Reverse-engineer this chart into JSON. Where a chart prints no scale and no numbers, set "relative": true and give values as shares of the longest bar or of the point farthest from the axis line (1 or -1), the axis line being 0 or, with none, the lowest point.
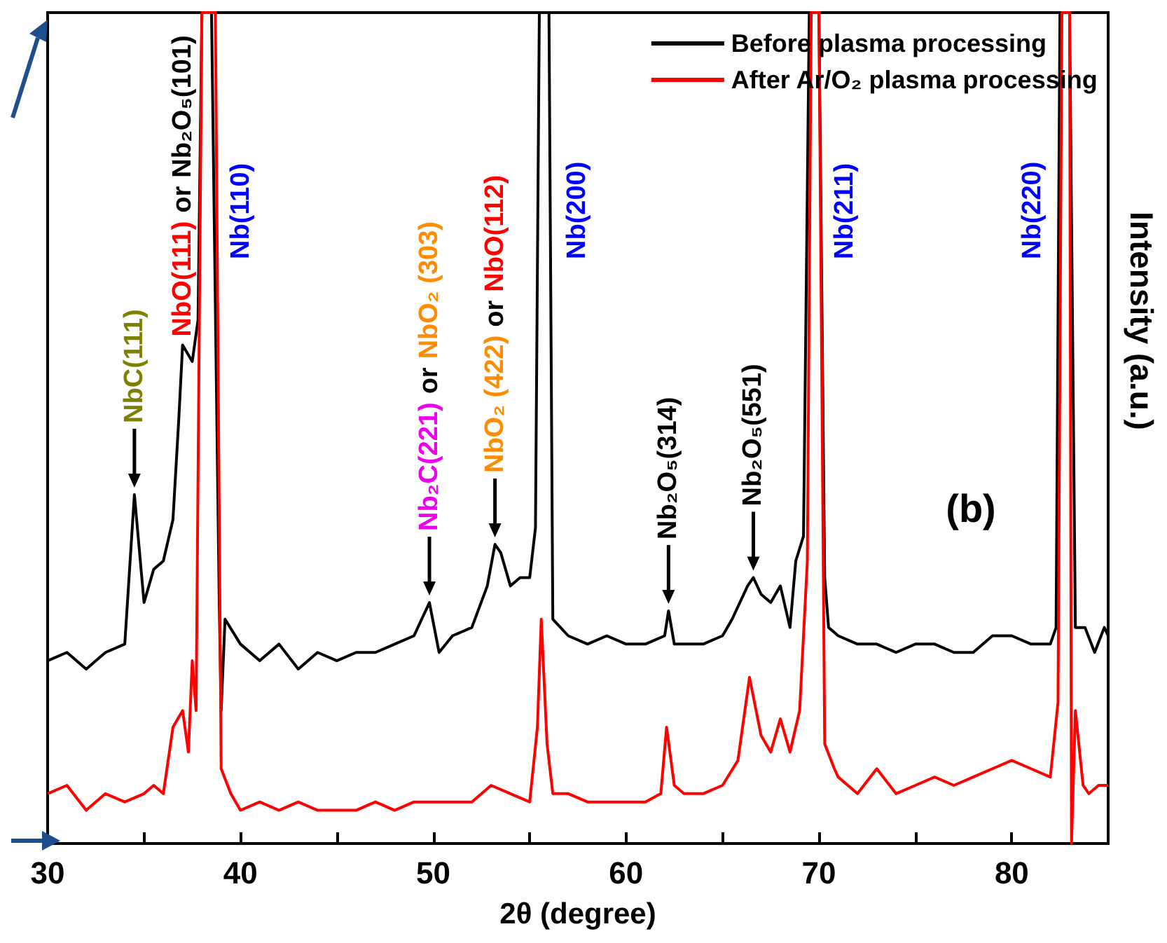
{
  "chart_data": {
    "type": "line",
    "xlabel": "2θ (degree)",
    "ylabel": "Intensity (a.u.)",
    "relative": true,
    "xlim": [
      30,
      85
    ],
    "xticks": [
      30,
      {
        "value": 35,
        "label": null
      },
      40,
      {
        "value": 45,
        "label": null
      },
      50,
      {
        "value": 55,
        "label": null
      },
      60,
      {
        "value": 65,
        "label": null
      },
      70,
      {
        "value": 75,
        "label": null
      },
      80,
      {
        "value": 85,
        "label": null
      }
    ],
    "legend": "top right",
    "marker": "none",
    "line_style": "solid",
    "grid": false,
    "series": [
      {
        "name": "Before plasma processing",
        "color": "#000000",
        "x": [
          30,
          31,
          32,
          33,
          34,
          34.5,
          35,
          35.5,
          36,
          36.5,
          36.8,
          37,
          37.5,
          37.8,
          38,
          38.5,
          38.9,
          39,
          39.2,
          40,
          41,
          42,
          43,
          44,
          45,
          46,
          47,
          48,
          49,
          49.8,
          50.3,
          51,
          52,
          52.8,
          53.2,
          53.5,
          54,
          54.5,
          55,
          55.3,
          55.5,
          56,
          56.2,
          57,
          58,
          59,
          60,
          61,
          62,
          62.2,
          62.5,
          63,
          64,
          65,
          65.5,
          66.3,
          66.6,
          67,
          67.5,
          68,
          68.5,
          68.8,
          69.2,
          69.5,
          70,
          70.3,
          70.5,
          71,
          72,
          73,
          74,
          75,
          76,
          77,
          78,
          79,
          80,
          81,
          82,
          82.3,
          82.5,
          83,
          83.3,
          83.8,
          84.3,
          84.8,
          85
        ],
        "values": [
          0.22,
          0.23,
          0.21,
          0.23,
          0.24,
          0.42,
          0.29,
          0.33,
          0.34,
          0.39,
          0.51,
          0.6,
          0.58,
          0.63,
          1,
          1,
          0.29,
          0.16,
          0.27,
          0.24,
          0.22,
          0.24,
          0.21,
          0.23,
          0.22,
          0.23,
          0.23,
          0.24,
          0.25,
          0.29,
          0.23,
          0.25,
          0.26,
          0.31,
          0.36,
          0.35,
          0.31,
          0.32,
          0.32,
          0.38,
          1,
          1,
          0.27,
          0.25,
          0.24,
          0.25,
          0.24,
          0.24,
          0.25,
          0.28,
          0.24,
          0.24,
          0.24,
          0.25,
          0.27,
          0.31,
          0.32,
          0.3,
          0.29,
          0.31,
          0.26,
          0.34,
          0.37,
          1,
          1,
          0.32,
          0.26,
          0.25,
          0.24,
          0.24,
          0.23,
          0.24,
          0.24,
          0.23,
          0.23,
          0.25,
          0.25,
          0.24,
          0.24,
          0.26,
          1,
          1,
          0.26,
          0.26,
          0.23,
          0.26,
          0.25
        ]
      },
      {
        "name": "After Ar/O₂ plasma processing",
        "color": "#ff0000",
        "x": [
          30,
          31,
          32,
          33,
          34,
          35,
          35.5,
          36,
          36.5,
          37,
          37.3,
          37.5,
          37.7,
          38,
          38.7,
          39,
          39.5,
          40,
          41,
          42,
          43,
          44,
          45,
          46,
          47,
          48,
          49,
          50,
          51,
          52,
          53,
          54,
          55,
          55.4,
          55.6,
          55.9,
          56.2,
          57,
          58,
          59,
          60,
          61,
          61.8,
          62.1,
          62.5,
          63,
          64,
          65,
          65.8,
          66.4,
          67,
          67.5,
          68,
          68.5,
          69,
          69.4,
          69.6,
          70,
          70.3,
          70.8,
          71,
          72,
          73,
          74,
          75,
          76,
          77,
          78,
          79,
          80,
          81,
          82,
          82.4,
          82.6,
          83,
          83.1,
          83.3,
          83.7,
          84,
          84.5,
          85
        ],
        "values": [
          0.06,
          0.07,
          0.04,
          0.06,
          0.05,
          0.06,
          0.07,
          0.06,
          0.14,
          0.16,
          0.11,
          0.22,
          0.16,
          1,
          1,
          0.09,
          0.06,
          0.04,
          0.05,
          0.04,
          0.05,
          0.04,
          0.04,
          0.04,
          0.05,
          0.04,
          0.05,
          0.05,
          0.05,
          0.05,
          0.07,
          0.06,
          0.05,
          0.14,
          0.27,
          0.12,
          0.06,
          0.06,
          0.05,
          0.05,
          0.05,
          0.05,
          0.06,
          0.14,
          0.07,
          0.06,
          0.06,
          0.07,
          0.1,
          0.2,
          0.13,
          0.11,
          0.15,
          0.11,
          0.16,
          0.34,
          1,
          1,
          0.12,
          0.09,
          0.08,
          0.06,
          0.09,
          0.06,
          0.07,
          0.08,
          0.07,
          0.08,
          0.09,
          0.1,
          0.09,
          0.08,
          0.17,
          1,
          1,
          0,
          0.16,
          0.07,
          0.06,
          0.07,
          0.07
        ]
      }
    ],
    "annotations": [
      {
        "text": "NbC(111)",
        "x": 34.5,
        "y": 0.42
      },
      {
        "text": "NbO(111)",
        "x": 37,
        "y": 0.6
      },
      "or",
      "Nb₂O₅(101)",
      "Nb(110)",
      {
        "text": "Nb₂C(221)",
        "x": 49.8,
        "y": 0.29
      },
      "or",
      "NbO₂ (303)",
      {
        "text": "NbO₂ (422)",
        "x": 53.2,
        "y": 0.36
      },
      "or",
      "NbO(112)",
      "Nb(200)",
      {
        "text": "Nb₂O₅(314)",
        "x": 62.2,
        "y": 0.28
      },
      {
        "text": "Nb₂O₅(551)",
        "x": 66.6,
        "y": 0.32
      },
      "Nb(211)",
      "Nb(220)",
      "(b)"
    ]
  }
}
